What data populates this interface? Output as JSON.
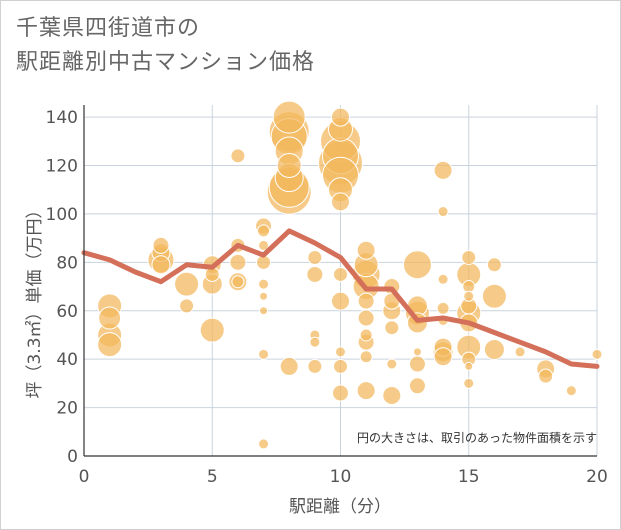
{
  "title_lines": [
    "千葉県四街道市の",
    "駅距離別中古マンション価格"
  ],
  "chart_data": {
    "type": "scatter",
    "title": "千葉県四街道市の駅距離別中古マンション価格",
    "xlabel": "駅距離（分）",
    "ylabel": "坪（3.3㎡）単価（万円）",
    "xlim": [
      0,
      20
    ],
    "ylim": [
      0,
      145
    ],
    "xticks": [
      0,
      5,
      10,
      15,
      20
    ],
    "yticks": [
      0,
      20,
      40,
      60,
      80,
      100,
      120,
      140
    ],
    "grid": true,
    "annotation": "円の大きさは、取引のあった物件面積を示す",
    "colors": {
      "bubble": "#f3b75c",
      "bubble_stroke": "#ffffff",
      "trend": "#d4705a",
      "grid": "#c9d3de",
      "axis": "#333333"
    },
    "scatter": [
      {
        "x": 1,
        "y": 62,
        "r": 12
      },
      {
        "x": 1,
        "y": 57,
        "r": 11
      },
      {
        "x": 1,
        "y": 50,
        "r": 12
      },
      {
        "x": 1,
        "y": 46,
        "r": 12
      },
      {
        "x": 3,
        "y": 87,
        "r": 8
      },
      {
        "x": 3,
        "y": 84,
        "r": 9
      },
      {
        "x": 3,
        "y": 81,
        "r": 13
      },
      {
        "x": 3,
        "y": 79,
        "r": 9
      },
      {
        "x": 4,
        "y": 71,
        "r": 12
      },
      {
        "x": 4,
        "y": 62,
        "r": 7
      },
      {
        "x": 5,
        "y": 79,
        "r": 9
      },
      {
        "x": 5,
        "y": 75,
        "r": 7
      },
      {
        "x": 5,
        "y": 71,
        "r": 10
      },
      {
        "x": 5,
        "y": 52,
        "r": 12
      },
      {
        "x": 6,
        "y": 124,
        "r": 7
      },
      {
        "x": 6,
        "y": 87,
        "r": 7
      },
      {
        "x": 6,
        "y": 80,
        "r": 8
      },
      {
        "x": 6,
        "y": 72,
        "r": 9
      },
      {
        "x": 6,
        "y": 72,
        "r": 6
      },
      {
        "x": 7,
        "y": 95,
        "r": 8
      },
      {
        "x": 7,
        "y": 93,
        "r": 6
      },
      {
        "x": 7,
        "y": 87,
        "r": 5
      },
      {
        "x": 7,
        "y": 80,
        "r": 7
      },
      {
        "x": 7,
        "y": 71,
        "r": 5
      },
      {
        "x": 7,
        "y": 66,
        "r": 4
      },
      {
        "x": 7,
        "y": 60,
        "r": 4
      },
      {
        "x": 7,
        "y": 42,
        "r": 5
      },
      {
        "x": 7,
        "y": 5,
        "r": 5
      },
      {
        "x": 8,
        "y": 140,
        "r": 16
      },
      {
        "x": 8,
        "y": 134,
        "r": 20
      },
      {
        "x": 8,
        "y": 132,
        "r": 18
      },
      {
        "x": 8,
        "y": 126,
        "r": 14
      },
      {
        "x": 8,
        "y": 120,
        "r": 12
      },
      {
        "x": 8,
        "y": 115,
        "r": 14
      },
      {
        "x": 8,
        "y": 111,
        "r": 20
      },
      {
        "x": 8,
        "y": 109,
        "r": 22
      },
      {
        "x": 8,
        "y": 37,
        "r": 9
      },
      {
        "x": 9,
        "y": 82,
        "r": 7
      },
      {
        "x": 9,
        "y": 75,
        "r": 8
      },
      {
        "x": 9,
        "y": 50,
        "r": 5
      },
      {
        "x": 9,
        "y": 47,
        "r": 5
      },
      {
        "x": 9,
        "y": 37,
        "r": 7
      },
      {
        "x": 10,
        "y": 140,
        "r": 9
      },
      {
        "x": 10,
        "y": 135,
        "r": 12
      },
      {
        "x": 10,
        "y": 130,
        "r": 20
      },
      {
        "x": 10,
        "y": 124,
        "r": 18
      },
      {
        "x": 10,
        "y": 121,
        "r": 22
      },
      {
        "x": 10,
        "y": 116,
        "r": 18
      },
      {
        "x": 10,
        "y": 110,
        "r": 12
      },
      {
        "x": 10,
        "y": 105,
        "r": 9
      },
      {
        "x": 10,
        "y": 75,
        "r": 7
      },
      {
        "x": 10,
        "y": 64,
        "r": 9
      },
      {
        "x": 10,
        "y": 43,
        "r": 5
      },
      {
        "x": 10,
        "y": 37,
        "r": 7
      },
      {
        "x": 10,
        "y": 26,
        "r": 8
      },
      {
        "x": 11,
        "y": 85,
        "r": 9
      },
      {
        "x": 11,
        "y": 79,
        "r": 12
      },
      {
        "x": 11,
        "y": 75,
        "r": 14
      },
      {
        "x": 11,
        "y": 70,
        "r": 13
      },
      {
        "x": 11,
        "y": 64,
        "r": 8
      },
      {
        "x": 11,
        "y": 57,
        "r": 8
      },
      {
        "x": 11,
        "y": 50,
        "r": 6
      },
      {
        "x": 11,
        "y": 47,
        "r": 8
      },
      {
        "x": 11,
        "y": 41,
        "r": 6
      },
      {
        "x": 11,
        "y": 27,
        "r": 9
      },
      {
        "x": 12,
        "y": 70,
        "r": 8
      },
      {
        "x": 12,
        "y": 64,
        "r": 8
      },
      {
        "x": 12,
        "y": 60,
        "r": 9
      },
      {
        "x": 12,
        "y": 53,
        "r": 7
      },
      {
        "x": 12,
        "y": 38,
        "r": 5
      },
      {
        "x": 12,
        "y": 25,
        "r": 9
      },
      {
        "x": 13,
        "y": 79,
        "r": 14
      },
      {
        "x": 13,
        "y": 62,
        "r": 10
      },
      {
        "x": 13,
        "y": 59,
        "r": 12
      },
      {
        "x": 13,
        "y": 55,
        "r": 10
      },
      {
        "x": 13,
        "y": 43,
        "r": 4
      },
      {
        "x": 13,
        "y": 38,
        "r": 8
      },
      {
        "x": 13,
        "y": 29,
        "r": 8
      },
      {
        "x": 14,
        "y": 118,
        "r": 9
      },
      {
        "x": 14,
        "y": 101,
        "r": 5
      },
      {
        "x": 14,
        "y": 73,
        "r": 5
      },
      {
        "x": 14,
        "y": 61,
        "r": 6
      },
      {
        "x": 14,
        "y": 56,
        "r": 5
      },
      {
        "x": 14,
        "y": 45,
        "r": 9
      },
      {
        "x": 14,
        "y": 43,
        "r": 10
      },
      {
        "x": 14,
        "y": 41,
        "r": 9
      },
      {
        "x": 15,
        "y": 82,
        "r": 7
      },
      {
        "x": 15,
        "y": 75,
        "r": 12
      },
      {
        "x": 15,
        "y": 70,
        "r": 6
      },
      {
        "x": 15,
        "y": 66,
        "r": 5
      },
      {
        "x": 15,
        "y": 62,
        "r": 8
      },
      {
        "x": 15,
        "y": 59,
        "r": 12
      },
      {
        "x": 15,
        "y": 55,
        "r": 9
      },
      {
        "x": 15,
        "y": 45,
        "r": 12
      },
      {
        "x": 15,
        "y": 40,
        "r": 7
      },
      {
        "x": 15,
        "y": 37,
        "r": 4
      },
      {
        "x": 15,
        "y": 30,
        "r": 5
      },
      {
        "x": 16,
        "y": 79,
        "r": 7
      },
      {
        "x": 16,
        "y": 66,
        "r": 12
      },
      {
        "x": 16,
        "y": 44,
        "r": 10
      },
      {
        "x": 17,
        "y": 43,
        "r": 5
      },
      {
        "x": 18,
        "y": 36,
        "r": 9
      },
      {
        "x": 18,
        "y": 33,
        "r": 7
      },
      {
        "x": 19,
        "y": 27,
        "r": 5
      },
      {
        "x": 20,
        "y": 42,
        "r": 5
      }
    ],
    "trend": {
      "x": [
        0,
        1,
        2,
        3,
        4,
        5,
        6,
        7,
        8,
        9,
        10,
        11,
        12,
        13,
        14,
        15,
        16,
        17,
        18,
        19,
        20
      ],
      "y": [
        84,
        81,
        76,
        72,
        79,
        78,
        87,
        83,
        93,
        88,
        82,
        69,
        69,
        56,
        57,
        55,
        51,
        47,
        43,
        38,
        37
      ]
    }
  }
}
